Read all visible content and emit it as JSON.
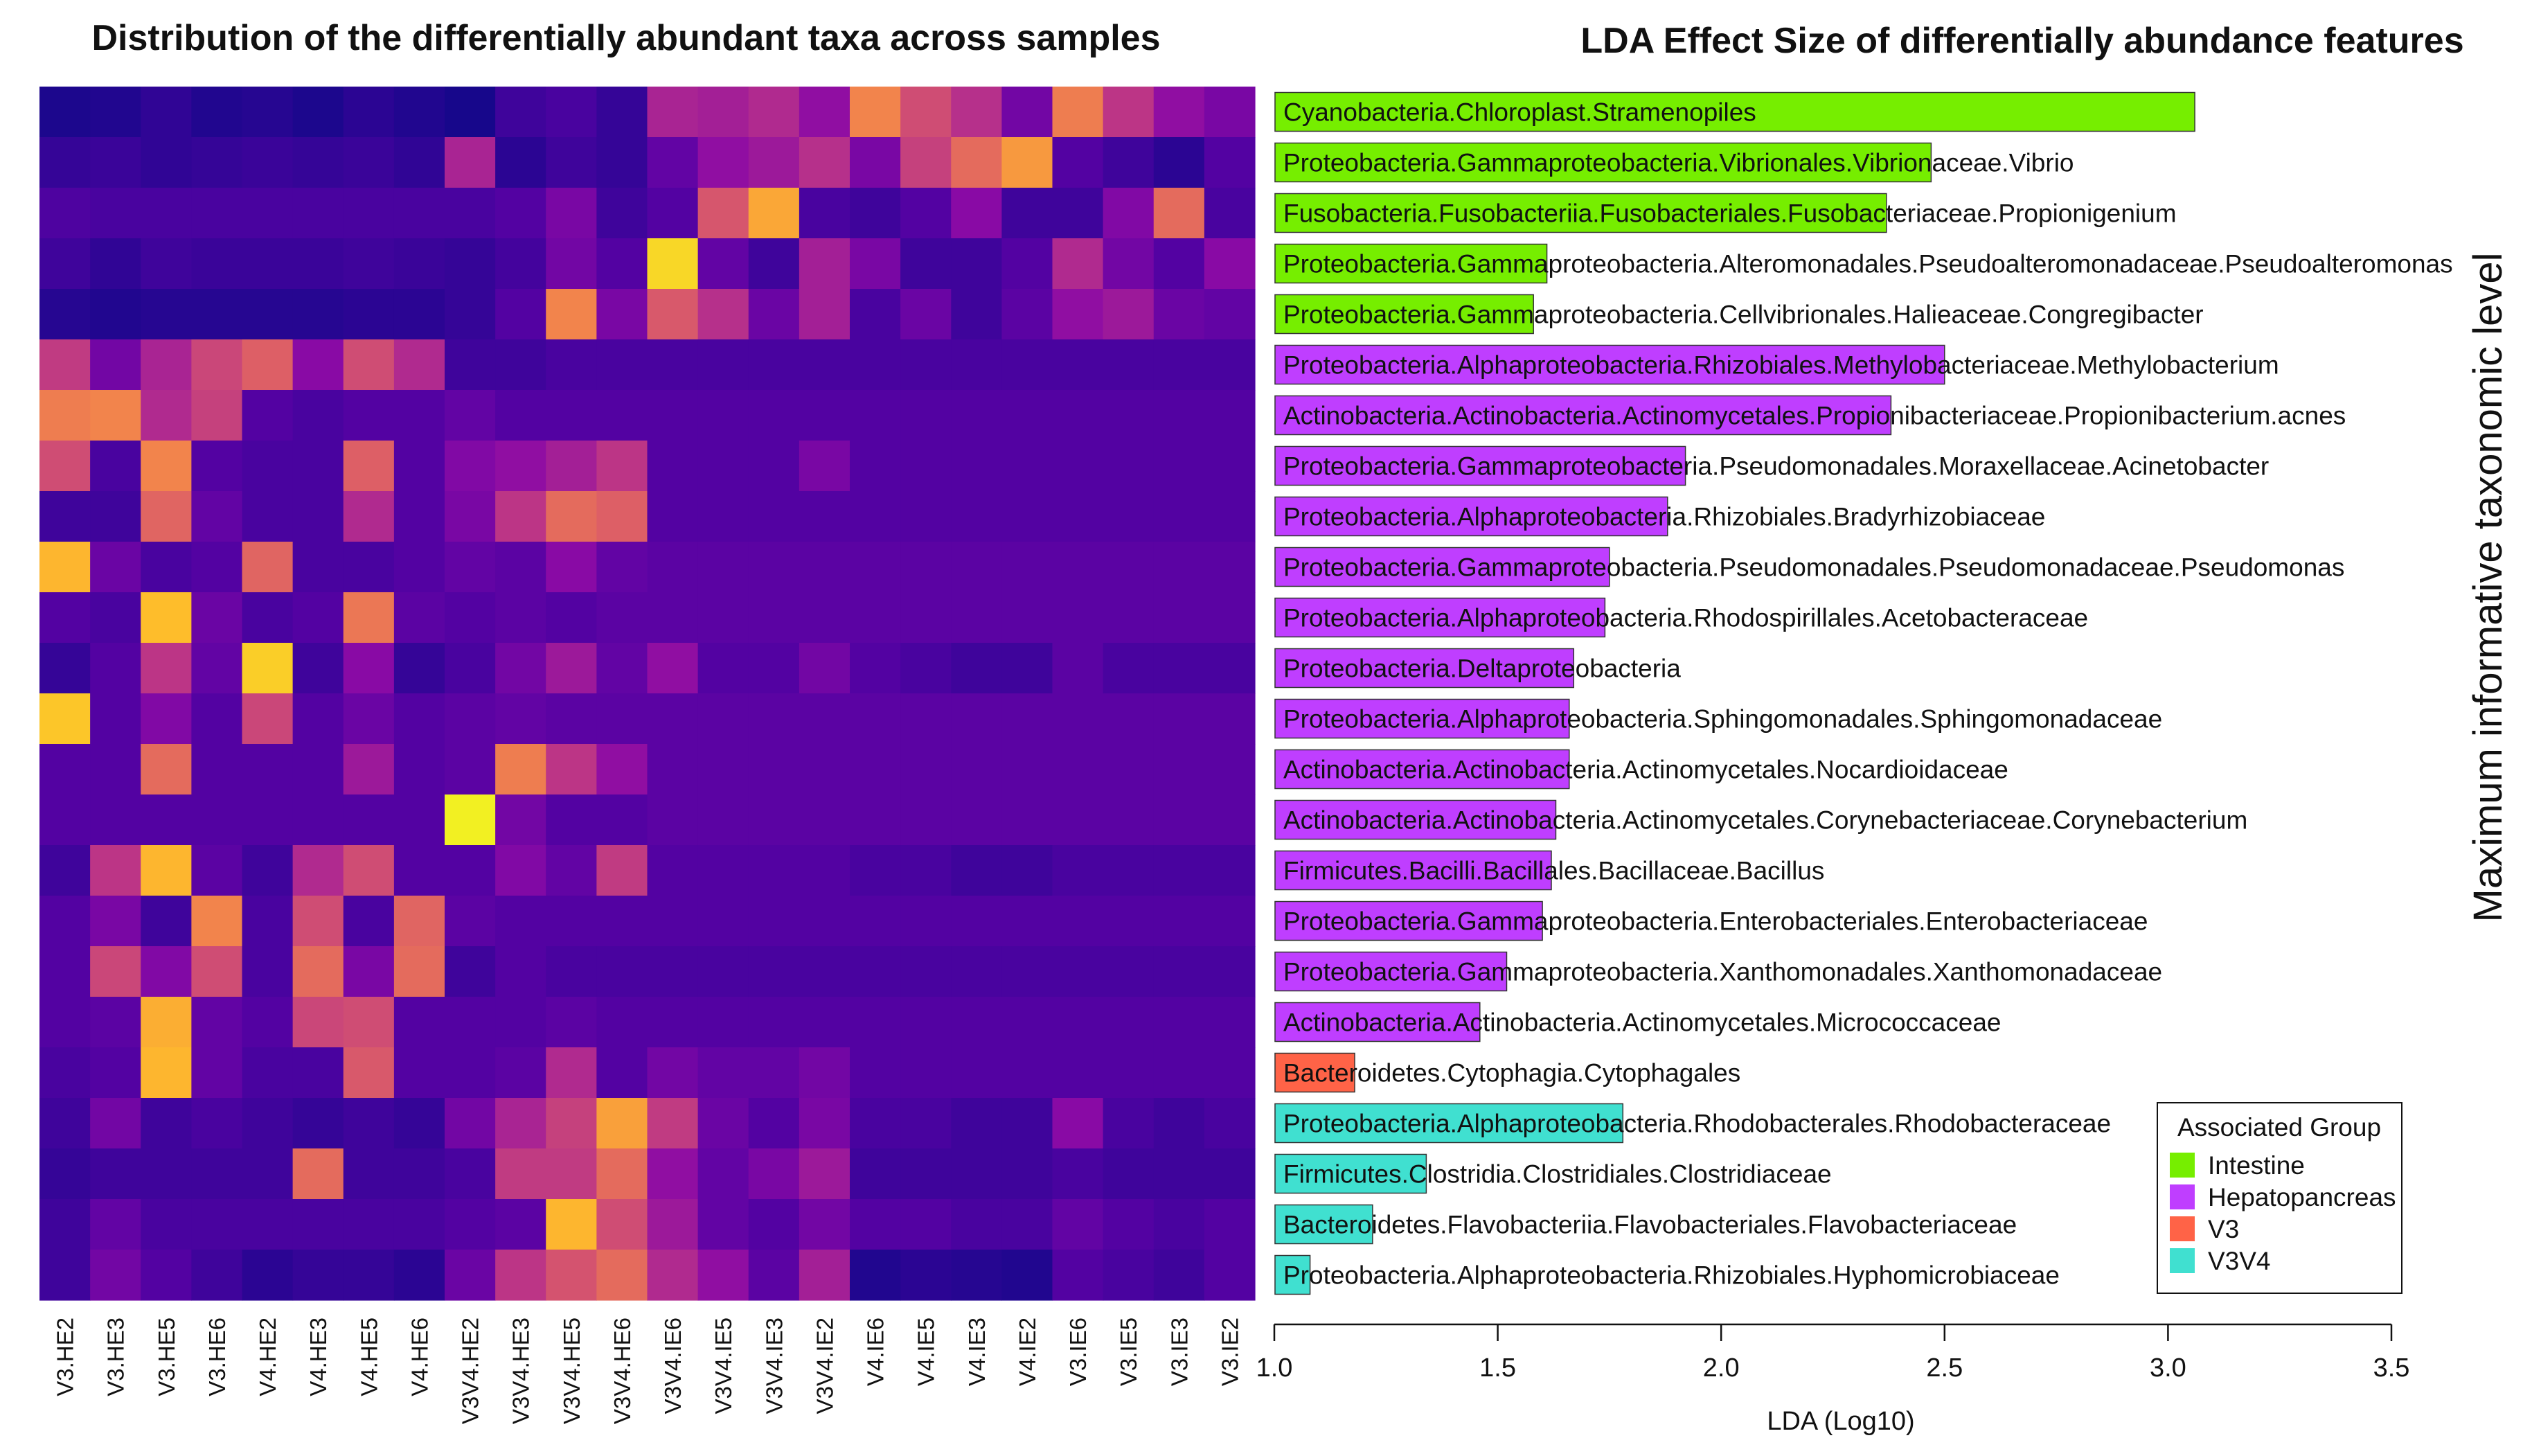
{
  "chart_data": [
    {
      "type": "heatmap",
      "title": "Distribution of the differentially abundant taxa across samples",
      "columns": [
        "V3.HE2",
        "V3.HE3",
        "V3.HE5",
        "V3.HE6",
        "V4.HE2",
        "V4.HE3",
        "V4.HE5",
        "V4.HE6",
        "V3V4.HE2",
        "V3V4.HE3",
        "V3V4.HE5",
        "V3V4.HE6",
        "V3V4.IE6",
        "V3V4.IE5",
        "V3V4.IE3",
        "V3V4.IE2",
        "V4.IE6",
        "V4.IE5",
        "V4.IE3",
        "V4.IE2",
        "V3.IE6",
        "V3.IE5",
        "V3.IE3",
        "V3.IE2"
      ],
      "rows": [
        "Cyanobacteria.Chloroplast.Stramenopiles",
        "Proteobacteria.Gammaproteobacteria.Vibrionales.Vibrionaceae.Vibrio",
        "Fusobacteria.Fusobacteriia.Fusobacteriales.Fusobacteriaceae.Propionigenium",
        "Proteobacteria.Gammaproteobacteria.Alteromonadales.Pseudoalteromonadaceae.Pseudoalteromonas",
        "Proteobacteria.Gammaproteobacteria.Cellvibrionales.Halieaceae.Congregibacter",
        "Proteobacteria.Alphaproteobacteria.Rhizobiales.Methylobacteriaceae.Methylobacterium",
        "Actinobacteria.Actinobacteria.Actinomycetales.Propionibacteriaceae.Propionibacterium.acnes",
        "Proteobacteria.Gammaproteobacteria.Pseudomonadales.Moraxellaceae.Acinetobacter",
        "Proteobacteria.Alphaproteobacteria.Rhizobiales.Bradyrhizobiaceae",
        "Proteobacteria.Gammaproteobacteria.Pseudomonadales.Pseudomonadaceae.Pseudomonas",
        "Proteobacteria.Alphaproteobacteria.Rhodospirillales.Acetobacteraceae",
        "Proteobacteria.Deltaproteobacteria",
        "Proteobacteria.Alphaproteobacteria.Sphingomonadales.Sphingomonadaceae",
        "Actinobacteria.Actinobacteria.Actinomycetales.Nocardioidaceae",
        "Actinobacteria.Actinobacteria.Actinomycetales.Corynebacteriaceae.Corynebacterium",
        "Firmicutes.Bacilli.Bacillales.Bacillaceae.Bacillus",
        "Proteobacteria.Gammaproteobacteria.Enterobacteriales.Enterobacteriaceae",
        "Proteobacteria.Gammaproteobacteria.Xanthomonadales.Xanthomonadaceae",
        "Actinobacteria.Actinobacteria.Actinomycetales.Micrococcaceae",
        "Bacteroidetes.Cytophagia.Cytophagales",
        "Proteobacteria.Alphaproteobacteria.Rhodobacterales.Rhodobacteraceae",
        "Firmicutes.Clostridia.Clostridiales.Clostridiaceae",
        "Bacteroidetes.Flavobacteriia.Flavobacteriales.Flavobacteriaceae",
        "Proteobacteria.Alphaproteobacteria.Rhizobiales.Hyphomicrobiaceae"
      ],
      "colormap": "plasma",
      "value_range": [
        0,
        1
      ],
      "values": [
        [
          0.03,
          0.04,
          0.07,
          0.04,
          0.05,
          0.03,
          0.06,
          0.04,
          0.02,
          0.1,
          0.12,
          0.08,
          0.38,
          0.36,
          0.4,
          0.3,
          0.7,
          0.52,
          0.42,
          0.22,
          0.68,
          0.44,
          0.3,
          0.24
        ],
        [
          0.08,
          0.09,
          0.07,
          0.08,
          0.09,
          0.08,
          0.09,
          0.07,
          0.38,
          0.06,
          0.1,
          0.08,
          0.18,
          0.3,
          0.34,
          0.42,
          0.24,
          0.48,
          0.62,
          0.76,
          0.14,
          0.1,
          0.06,
          0.14
        ],
        [
          0.13,
          0.12,
          0.12,
          0.12,
          0.12,
          0.12,
          0.12,
          0.12,
          0.12,
          0.14,
          0.24,
          0.1,
          0.14,
          0.55,
          0.8,
          0.12,
          0.1,
          0.14,
          0.28,
          0.1,
          0.1,
          0.26,
          0.62,
          0.12
        ],
        [
          0.1,
          0.07,
          0.1,
          0.09,
          0.09,
          0.09,
          0.1,
          0.09,
          0.08,
          0.11,
          0.22,
          0.14,
          0.92,
          0.18,
          0.1,
          0.36,
          0.24,
          0.1,
          0.1,
          0.14,
          0.4,
          0.22,
          0.14,
          0.28
        ],
        [
          0.05,
          0.04,
          0.05,
          0.05,
          0.05,
          0.05,
          0.06,
          0.06,
          0.08,
          0.14,
          0.7,
          0.24,
          0.56,
          0.42,
          0.2,
          0.36,
          0.12,
          0.2,
          0.1,
          0.16,
          0.3,
          0.34,
          0.2,
          0.18
        ],
        [
          0.46,
          0.22,
          0.38,
          0.5,
          0.58,
          0.28,
          0.52,
          0.4,
          0.1,
          0.1,
          0.12,
          0.12,
          0.12,
          0.12,
          0.12,
          0.12,
          0.12,
          0.12,
          0.12,
          0.12,
          0.12,
          0.12,
          0.12,
          0.12
        ],
        [
          0.68,
          0.7,
          0.4,
          0.48,
          0.14,
          0.12,
          0.14,
          0.14,
          0.18,
          0.14,
          0.14,
          0.14,
          0.14,
          0.14,
          0.14,
          0.14,
          0.14,
          0.14,
          0.14,
          0.14,
          0.14,
          0.14,
          0.14,
          0.14
        ],
        [
          0.52,
          0.12,
          0.7,
          0.14,
          0.12,
          0.12,
          0.58,
          0.14,
          0.26,
          0.3,
          0.36,
          0.44,
          0.14,
          0.14,
          0.14,
          0.24,
          0.14,
          0.14,
          0.14,
          0.14,
          0.14,
          0.14,
          0.14,
          0.14
        ],
        [
          0.1,
          0.1,
          0.6,
          0.18,
          0.12,
          0.12,
          0.4,
          0.14,
          0.24,
          0.44,
          0.62,
          0.58,
          0.14,
          0.14,
          0.14,
          0.14,
          0.14,
          0.14,
          0.14,
          0.14,
          0.14,
          0.14,
          0.14,
          0.14
        ],
        [
          0.84,
          0.2,
          0.12,
          0.14,
          0.6,
          0.12,
          0.12,
          0.14,
          0.18,
          0.16,
          0.28,
          0.18,
          0.16,
          0.16,
          0.16,
          0.16,
          0.16,
          0.16,
          0.16,
          0.16,
          0.16,
          0.16,
          0.16,
          0.16
        ],
        [
          0.14,
          0.12,
          0.86,
          0.2,
          0.12,
          0.14,
          0.66,
          0.16,
          0.14,
          0.16,
          0.14,
          0.16,
          0.16,
          0.16,
          0.16,
          0.16,
          0.16,
          0.16,
          0.16,
          0.16,
          0.16,
          0.16,
          0.16,
          0.16
        ],
        [
          0.08,
          0.14,
          0.44,
          0.18,
          0.9,
          0.1,
          0.28,
          0.08,
          0.12,
          0.22,
          0.34,
          0.18,
          0.3,
          0.14,
          0.14,
          0.22,
          0.14,
          0.12,
          0.1,
          0.1,
          0.16,
          0.12,
          0.12,
          0.12
        ],
        [
          0.88,
          0.14,
          0.26,
          0.14,
          0.5,
          0.14,
          0.2,
          0.14,
          0.16,
          0.18,
          0.16,
          0.16,
          0.16,
          0.16,
          0.16,
          0.16,
          0.16,
          0.16,
          0.16,
          0.16,
          0.16,
          0.16,
          0.16,
          0.16
        ],
        [
          0.14,
          0.14,
          0.62,
          0.14,
          0.14,
          0.14,
          0.34,
          0.14,
          0.16,
          0.68,
          0.44,
          0.3,
          0.16,
          0.16,
          0.16,
          0.16,
          0.16,
          0.16,
          0.16,
          0.16,
          0.16,
          0.16,
          0.16,
          0.16
        ],
        [
          0.14,
          0.14,
          0.14,
          0.14,
          0.14,
          0.14,
          0.14,
          0.14,
          0.98,
          0.22,
          0.14,
          0.14,
          0.16,
          0.16,
          0.16,
          0.16,
          0.16,
          0.16,
          0.16,
          0.16,
          0.16,
          0.16,
          0.16,
          0.16
        ],
        [
          0.1,
          0.44,
          0.84,
          0.16,
          0.1,
          0.4,
          0.52,
          0.14,
          0.14,
          0.26,
          0.18,
          0.46,
          0.14,
          0.14,
          0.14,
          0.14,
          0.12,
          0.12,
          0.1,
          0.1,
          0.12,
          0.12,
          0.12,
          0.12
        ],
        [
          0.14,
          0.24,
          0.1,
          0.7,
          0.12,
          0.52,
          0.12,
          0.6,
          0.16,
          0.14,
          0.14,
          0.14,
          0.14,
          0.14,
          0.14,
          0.14,
          0.14,
          0.14,
          0.14,
          0.14,
          0.14,
          0.14,
          0.14,
          0.14
        ],
        [
          0.14,
          0.5,
          0.26,
          0.52,
          0.12,
          0.62,
          0.24,
          0.62,
          0.1,
          0.14,
          0.12,
          0.12,
          0.12,
          0.12,
          0.12,
          0.12,
          0.12,
          0.12,
          0.12,
          0.12,
          0.12,
          0.12,
          0.12,
          0.12
        ],
        [
          0.14,
          0.16,
          0.82,
          0.18,
          0.14,
          0.5,
          0.52,
          0.14,
          0.14,
          0.14,
          0.16,
          0.14,
          0.14,
          0.14,
          0.14,
          0.14,
          0.14,
          0.14,
          0.14,
          0.14,
          0.14,
          0.14,
          0.14,
          0.14
        ],
        [
          0.12,
          0.14,
          0.84,
          0.18,
          0.12,
          0.12,
          0.56,
          0.14,
          0.14,
          0.16,
          0.4,
          0.14,
          0.22,
          0.18,
          0.18,
          0.22,
          0.14,
          0.14,
          0.14,
          0.14,
          0.14,
          0.14,
          0.14,
          0.14
        ],
        [
          0.1,
          0.22,
          0.1,
          0.12,
          0.1,
          0.08,
          0.1,
          0.08,
          0.22,
          0.38,
          0.48,
          0.78,
          0.46,
          0.2,
          0.14,
          0.24,
          0.12,
          0.12,
          0.1,
          0.1,
          0.28,
          0.12,
          0.1,
          0.12
        ],
        [
          0.08,
          0.1,
          0.1,
          0.1,
          0.1,
          0.62,
          0.1,
          0.1,
          0.12,
          0.46,
          0.46,
          0.62,
          0.3,
          0.18,
          0.24,
          0.34,
          0.1,
          0.1,
          0.1,
          0.1,
          0.12,
          0.1,
          0.1,
          0.1
        ],
        [
          0.1,
          0.18,
          0.12,
          0.12,
          0.12,
          0.12,
          0.12,
          0.12,
          0.14,
          0.16,
          0.84,
          0.52,
          0.34,
          0.18,
          0.14,
          0.22,
          0.14,
          0.14,
          0.12,
          0.12,
          0.18,
          0.14,
          0.12,
          0.14
        ],
        [
          0.1,
          0.22,
          0.14,
          0.1,
          0.06,
          0.08,
          0.08,
          0.06,
          0.2,
          0.44,
          0.54,
          0.62,
          0.4,
          0.3,
          0.16,
          0.36,
          0.04,
          0.06,
          0.05,
          0.04,
          0.14,
          0.12,
          0.1,
          0.14
        ]
      ]
    },
    {
      "type": "bar",
      "orientation": "horizontal",
      "title": "LDA Effect Size of differentially abundance features",
      "xlabel": "LDA (Log10)",
      "ylabel": "Maximum informative taxonomic level",
      "xlim": [
        1.0,
        3.5
      ],
      "xticks": [
        "1.0",
        "1.5",
        "2.0",
        "2.5",
        "3.0",
        "3.5"
      ],
      "categories": [
        "Cyanobacteria.Chloroplast.Stramenopiles",
        "Proteobacteria.Gammaproteobacteria.Vibrionales.Vibrionaceae.Vibrio",
        "Fusobacteria.Fusobacteriia.Fusobacteriales.Fusobacteriaceae.Propionigenium",
        "Proteobacteria.Gammaproteobacteria.Alteromonadales.Pseudoalteromonadaceae.Pseudoalteromonas",
        "Proteobacteria.Gammaproteobacteria.Cellvibrionales.Halieaceae.Congregibacter",
        "Proteobacteria.Alphaproteobacteria.Rhizobiales.Methylobacteriaceae.Methylobacterium",
        "Actinobacteria.Actinobacteria.Actinomycetales.Propionibacteriaceae.Propionibacterium.acnes",
        "Proteobacteria.Gammaproteobacteria.Pseudomonadales.Moraxellaceae.Acinetobacter",
        "Proteobacteria.Alphaproteobacteria.Rhizobiales.Bradyrhizobiaceae",
        "Proteobacteria.Gammaproteobacteria.Pseudomonadales.Pseudomonadaceae.Pseudomonas",
        "Proteobacteria.Alphaproteobacteria.Rhodospirillales.Acetobacteraceae",
        "Proteobacteria.Deltaproteobacteria",
        "Proteobacteria.Alphaproteobacteria.Sphingomonadales.Sphingomonadaceae",
        "Actinobacteria.Actinobacteria.Actinomycetales.Nocardioidaceae",
        "Actinobacteria.Actinobacteria.Actinomycetales.Corynebacteriaceae.Corynebacterium",
        "Firmicutes.Bacilli.Bacillales.Bacillaceae.Bacillus",
        "Proteobacteria.Gammaproteobacteria.Enterobacteriales.Enterobacteriaceae",
        "Proteobacteria.Gammaproteobacteria.Xanthomonadales.Xanthomonadaceae",
        "Actinobacteria.Actinobacteria.Actinomycetales.Micrococcaceae",
        "Bacteroidetes.Cytophagia.Cytophagales",
        "Proteobacteria.Alphaproteobacteria.Rhodobacterales.Rhodobacteraceae",
        "Firmicutes.Clostridia.Clostridiales.Clostridiaceae",
        "Bacteroidetes.Flavobacteriia.Flavobacteriales.Flavobacteriaceae",
        "Proteobacteria.Alphaproteobacteria.Rhizobiales.Hyphomicrobiaceae"
      ],
      "values": [
        3.06,
        2.47,
        2.37,
        1.61,
        1.58,
        2.5,
        2.38,
        1.92,
        1.88,
        1.75,
        1.74,
        1.67,
        1.66,
        1.66,
        1.63,
        1.62,
        1.6,
        1.52,
        1.46,
        1.18,
        1.78,
        1.34,
        1.22,
        1.08
      ],
      "groups": [
        "Intestine",
        "Intestine",
        "Intestine",
        "Intestine",
        "Intestine",
        "Hepatopancreas",
        "Hepatopancreas",
        "Hepatopancreas",
        "Hepatopancreas",
        "Hepatopancreas",
        "Hepatopancreas",
        "Hepatopancreas",
        "Hepatopancreas",
        "Hepatopancreas",
        "Hepatopancreas",
        "Hepatopancreas",
        "Hepatopancreas",
        "Hepatopancreas",
        "Hepatopancreas",
        "V3",
        "V3V4",
        "V3V4",
        "V3V4",
        "V3V4"
      ],
      "legend": {
        "title": "Associated Group",
        "placement": "bottom-right",
        "entries": [
          {
            "label": "Intestine",
            "color": "#76ee00"
          },
          {
            "label": "Hepatopancreas",
            "color": "#bf3eff"
          },
          {
            "label": "V3",
            "color": "#ff6347"
          },
          {
            "label": "V3V4",
            "color": "#40e0d0"
          }
        ]
      }
    }
  ]
}
